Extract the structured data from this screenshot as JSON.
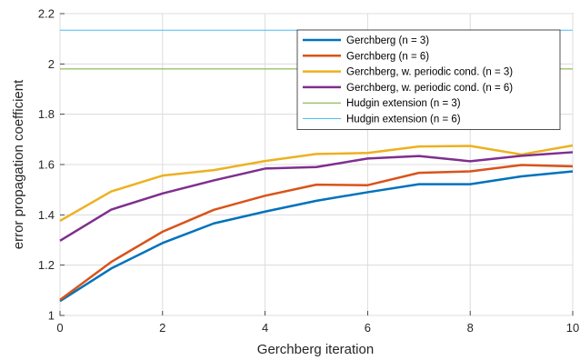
{
  "chart_data": {
    "type": "line",
    "title": "",
    "xlabel": "Gerchberg iteration",
    "ylabel": "error propagation coefficient",
    "xlim": [
      0,
      10
    ],
    "ylim": [
      1,
      2.2
    ],
    "xticks": [
      0,
      2,
      4,
      6,
      8,
      10
    ],
    "yticks": [
      1,
      1.2,
      1.4,
      1.6,
      1.8,
      2,
      2.2
    ],
    "grid": true,
    "legend_position": "top-right",
    "x": [
      0,
      1,
      2,
      3,
      4,
      5,
      6,
      7,
      8,
      9,
      10
    ],
    "series": [
      {
        "name": "Gerchberg (n = 3)",
        "color": "#0072BD",
        "width": 2.5,
        "values": [
          1.057,
          1.187,
          1.288,
          1.366,
          1.413,
          1.456,
          1.49,
          1.522,
          1.522,
          1.553,
          1.573
        ]
      },
      {
        "name": "Gerchberg (n = 6)",
        "color": "#D95319",
        "width": 2.5,
        "values": [
          1.062,
          1.213,
          1.333,
          1.42,
          1.476,
          1.52,
          1.518,
          1.567,
          1.573,
          1.598,
          1.593
        ]
      },
      {
        "name": "Gerchberg, w. periodic cond. (n = 3)",
        "color": "#EDB120",
        "width": 2.5,
        "values": [
          1.376,
          1.493,
          1.556,
          1.578,
          1.614,
          1.642,
          1.646,
          1.672,
          1.674,
          1.64,
          1.676
        ]
      },
      {
        "name": "Gerchberg, w. periodic cond. (n = 6)",
        "color": "#7E2F8E",
        "width": 2.5,
        "values": [
          1.297,
          1.421,
          1.485,
          1.537,
          1.584,
          1.59,
          1.624,
          1.634,
          1.613,
          1.635,
          1.649
        ]
      },
      {
        "name": "Hudgin extension (n = 3)",
        "color": "#77AC30",
        "width": 1,
        "values": [
          1.98,
          1.98,
          1.98,
          1.98,
          1.98,
          1.98,
          1.98,
          1.98,
          1.98,
          1.98,
          1.98
        ]
      },
      {
        "name": "Hudgin extension (n = 6)",
        "color": "#4DBEEE",
        "width": 1,
        "values": [
          2.134,
          2.134,
          2.134,
          2.134,
          2.134,
          2.134,
          2.134,
          2.134,
          2.134,
          2.134,
          2.134
        ]
      }
    ]
  }
}
